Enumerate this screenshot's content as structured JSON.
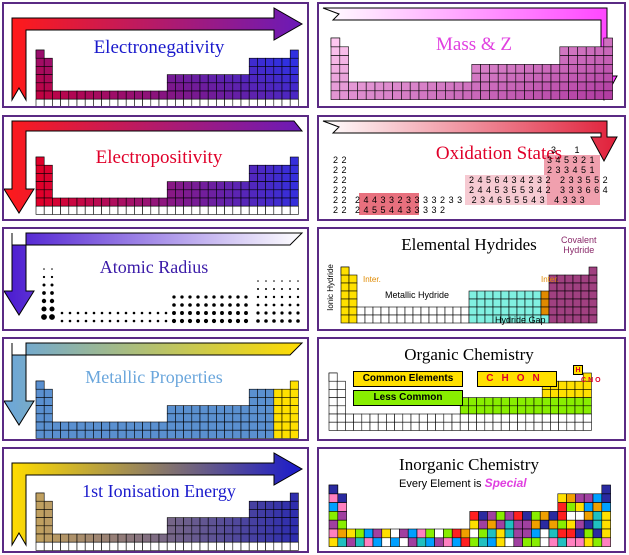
{
  "panels": {
    "electronegativity": {
      "title": "Electronegativity",
      "color": "#1a1acc"
    },
    "mass_z": {
      "title": "Mass & Z",
      "color": "#e040e0"
    },
    "electropositivity": {
      "title": "Electropositivity",
      "color": "#e0002a"
    },
    "oxidation_states": {
      "title": "Oxidation States",
      "color": "#e0002a",
      "rows": [
        {
          "text": "3      1"
        },
        {
          "text": "3 4 5 3 2 1"
        },
        {
          "text": "2 3 3 4 5 1"
        },
        {
          "text": "2 4 5 6 4 3 4 2 3 2   2 3 3 5 5 2"
        },
        {
          "text": "2 4 4 5 3 5 5 3 4 2   3 3 3 6 6 4"
        },
        {
          "text": "2 4 4 3 3 2 3 3 3 3 2 3 3   2 3 4 6 5 5 5 4 3   4 3 3 3"
        },
        {
          "text": "2 4 5 5 4 4 3 3 3 3 2"
        }
      ],
      "left_col": [
        "2 2",
        "2 2",
        "2 2",
        "2 2",
        "2 2",
        "2 2"
      ]
    },
    "atomic_radius": {
      "title": "Atomic Radius",
      "color": "#3a1aa8"
    },
    "elemental_hydrides": {
      "title": "Elemental Hydrides",
      "covalent": "Covalent\nHydride",
      "ionic": "Ionic Hydride",
      "inter_left": "Inter.",
      "inter_right": "Inter.",
      "metallic": "Metallic Hydride",
      "gap": "Hydride Gap"
    },
    "metallic_properties": {
      "title": "Metallic Properties",
      "color": "#6aa6dc"
    },
    "organic_chemistry": {
      "title": "Organic Chemistry",
      "common": "Common Elements",
      "less_common": "Less Common",
      "chon": [
        "C",
        "H",
        "O",
        "N"
      ],
      "mini_h": "H",
      "mini_cno": [
        "C",
        "N",
        "O"
      ]
    },
    "ionisation": {
      "title": "1st Ionisation Energy",
      "color": "#1a1acc"
    },
    "inorganic_chemistry": {
      "title": "Inorganic Chemistry",
      "subtitle_prefix": "Every Element is ",
      "subtitle_emph": "Special"
    }
  }
}
